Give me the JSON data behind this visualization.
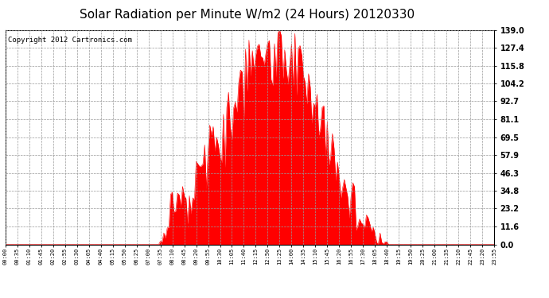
{
  "title": "Solar Radiation per Minute W/m2 (24 Hours) 20120330",
  "copyright_text": "Copyright 2012 Cartronics.com",
  "bar_color": "#ff0000",
  "background_color": "#ffffff",
  "yticks": [
    0.0,
    11.6,
    23.2,
    34.8,
    46.3,
    57.9,
    69.5,
    81.1,
    92.7,
    104.2,
    115.8,
    127.4,
    139.0
  ],
  "ymax": 139.0,
  "ymin": 0.0,
  "grid_color": "#999999",
  "title_fontsize": 11,
  "copyright_fontsize": 6.5,
  "ytick_fontsize": 7,
  "xtick_fontsize": 5
}
